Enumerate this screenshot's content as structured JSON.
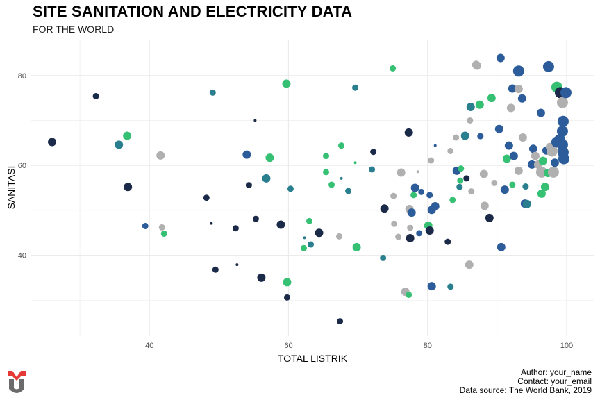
{
  "header": {
    "title": "SITE SANITATION AND ELECTRICITY DATA",
    "subtitle": "FOR THE WORLD"
  },
  "caption": {
    "author": "Author: your_name",
    "contact": "Contact: your_email",
    "source": "Data source: The World Bank, 2019"
  },
  "colors": {
    "palette": [
      "#1b2a49",
      "#2c5c9a",
      "#2a7f8f",
      "#35c073",
      "#b0b0b0"
    ],
    "grid": "#ebebeb",
    "axis_text": "#4d4d4d",
    "logo_red": "#e53935",
    "logo_gray": "#6b6b6b"
  },
  "chart_data": {
    "type": "scatter",
    "xlabel": "TOTAL LISTRIK",
    "ylabel": "SANITASI",
    "xlim": [
      23,
      104
    ],
    "ylim": [
      22,
      88
    ],
    "xticks": [
      40,
      60,
      80,
      100
    ],
    "yticks": [
      40,
      60,
      80
    ],
    "grid": true,
    "legend": "none",
    "points": [
      {
        "x": 26,
        "y": 65.2,
        "s": 3,
        "c": 0
      },
      {
        "x": 32.3,
        "y": 75.4,
        "s": 2,
        "c": 0
      },
      {
        "x": 35.6,
        "y": 64.6,
        "s": 3,
        "c": 2
      },
      {
        "x": 36.8,
        "y": 66.6,
        "s": 3,
        "c": 3
      },
      {
        "x": 36.9,
        "y": 55.2,
        "s": 3,
        "c": 0
      },
      {
        "x": 39.4,
        "y": 46.5,
        "s": 2,
        "c": 1
      },
      {
        "x": 41.6,
        "y": 62.2,
        "s": 3,
        "c": 4
      },
      {
        "x": 41.8,
        "y": 46.2,
        "s": 2,
        "c": 4
      },
      {
        "x": 42.1,
        "y": 44.8,
        "s": 2,
        "c": 3
      },
      {
        "x": 48.2,
        "y": 52.8,
        "s": 2,
        "c": 0
      },
      {
        "x": 48.9,
        "y": 47.1,
        "s": 1,
        "c": 0
      },
      {
        "x": 49.1,
        "y": 76.2,
        "s": 2,
        "c": 2
      },
      {
        "x": 49.5,
        "y": 36.8,
        "s": 2,
        "c": 0
      },
      {
        "x": 52.4,
        "y": 46,
        "s": 2,
        "c": 0
      },
      {
        "x": 52.6,
        "y": 37.9,
        "s": 1,
        "c": 0
      },
      {
        "x": 54,
        "y": 62.4,
        "s": 3,
        "c": 1
      },
      {
        "x": 54.3,
        "y": 55.6,
        "s": 2,
        "c": 0
      },
      {
        "x": 55.2,
        "y": 70,
        "s": 1,
        "c": 0
      },
      {
        "x": 55.3,
        "y": 48.1,
        "s": 2,
        "c": 0
      },
      {
        "x": 56.1,
        "y": 35,
        "s": 3,
        "c": 0
      },
      {
        "x": 56.8,
        "y": 57.1,
        "s": 3,
        "c": 2
      },
      {
        "x": 57.3,
        "y": 61.7,
        "s": 3,
        "c": 3
      },
      {
        "x": 58.9,
        "y": 46.8,
        "s": 3,
        "c": 0
      },
      {
        "x": 59.7,
        "y": 78.2,
        "s": 3,
        "c": 3
      },
      {
        "x": 59.8,
        "y": 34,
        "s": 3,
        "c": 3
      },
      {
        "x": 59.8,
        "y": 30.6,
        "s": 2,
        "c": 0
      },
      {
        "x": 60.3,
        "y": 54.8,
        "s": 2,
        "c": 2
      },
      {
        "x": 62.2,
        "y": 41.6,
        "s": 2,
        "c": 3
      },
      {
        "x": 62.3,
        "y": 43.9,
        "s": 1,
        "c": 2
      },
      {
        "x": 63,
        "y": 47.6,
        "s": 2,
        "c": 3
      },
      {
        "x": 63.2,
        "y": 42.4,
        "s": 2,
        "c": 2
      },
      {
        "x": 64.4,
        "y": 45,
        "s": 3,
        "c": 0
      },
      {
        "x": 65.4,
        "y": 62.1,
        "s": 2,
        "c": 3
      },
      {
        "x": 65.4,
        "y": 58.5,
        "s": 2,
        "c": 3
      },
      {
        "x": 66.2,
        "y": 55.7,
        "s": 2,
        "c": 3
      },
      {
        "x": 67.3,
        "y": 44.2,
        "s": 2,
        "c": 4
      },
      {
        "x": 67.4,
        "y": 25.3,
        "s": 2,
        "c": 0
      },
      {
        "x": 67.6,
        "y": 64.4,
        "s": 2,
        "c": 3
      },
      {
        "x": 67.6,
        "y": 57.1,
        "s": 1,
        "c": 2
      },
      {
        "x": 68.6,
        "y": 54.3,
        "s": 2,
        "c": 2
      },
      {
        "x": 69.6,
        "y": 77.3,
        "s": 2,
        "c": 2
      },
      {
        "x": 69.6,
        "y": 60.6,
        "s": 1,
        "c": 3
      },
      {
        "x": 69.8,
        "y": 41.8,
        "s": 3,
        "c": 3
      },
      {
        "x": 72,
        "y": 59.1,
        "s": 2,
        "c": 2
      },
      {
        "x": 72.2,
        "y": 63,
        "s": 2,
        "c": 0
      },
      {
        "x": 73.6,
        "y": 39.4,
        "s": 2,
        "c": 2
      },
      {
        "x": 73.8,
        "y": 50.4,
        "s": 3,
        "c": 0
      },
      {
        "x": 75,
        "y": 81.6,
        "s": 2,
        "c": 3
      },
      {
        "x": 75.1,
        "y": 53.2,
        "s": 2,
        "c": 4
      },
      {
        "x": 75.2,
        "y": 47,
        "s": 2,
        "c": 4
      },
      {
        "x": 75.8,
        "y": 44.1,
        "s": 2,
        "c": 4
      },
      {
        "x": 76.2,
        "y": 58.4,
        "s": 3,
        "c": 4
      },
      {
        "x": 76.8,
        "y": 31.9,
        "s": 3,
        "c": 4
      },
      {
        "x": 77.3,
        "y": 31.2,
        "s": 2,
        "c": 3
      },
      {
        "x": 77.3,
        "y": 67.3,
        "s": 3,
        "c": 0
      },
      {
        "x": 77.4,
        "y": 50.3,
        "s": 3,
        "c": 4
      },
      {
        "x": 77.5,
        "y": 46.1,
        "s": 2,
        "c": 4
      },
      {
        "x": 77.5,
        "y": 43.8,
        "s": 3,
        "c": 0
      },
      {
        "x": 77.7,
        "y": 49.5,
        "s": 3,
        "c": 1
      },
      {
        "x": 78,
        "y": 53.4,
        "s": 2,
        "c": 3
      },
      {
        "x": 78.2,
        "y": 55,
        "s": 3,
        "c": 1
      },
      {
        "x": 78.6,
        "y": 58.6,
        "s": 1,
        "c": 4
      },
      {
        "x": 78.8,
        "y": 44.9,
        "s": 2,
        "c": 1
      },
      {
        "x": 79.1,
        "y": 54.1,
        "s": 2,
        "c": 1
      },
      {
        "x": 80.1,
        "y": 46.6,
        "s": 3,
        "c": 3
      },
      {
        "x": 80.3,
        "y": 45.5,
        "s": 3,
        "c": 0
      },
      {
        "x": 80.3,
        "y": 53.4,
        "s": 2,
        "c": 1
      },
      {
        "x": 80.5,
        "y": 61.1,
        "s": 2,
        "c": 4
      },
      {
        "x": 80.6,
        "y": 50.1,
        "s": 3,
        "c": 1
      },
      {
        "x": 80.6,
        "y": 33.1,
        "s": 3,
        "c": 1
      },
      {
        "x": 81.1,
        "y": 50.9,
        "s": 3,
        "c": 1
      },
      {
        "x": 81.1,
        "y": 64.4,
        "s": 1,
        "c": 1
      },
      {
        "x": 82.9,
        "y": 43,
        "s": 2,
        "c": 0
      },
      {
        "x": 83.3,
        "y": 63.2,
        "s": 2,
        "c": 4
      },
      {
        "x": 83.3,
        "y": 33,
        "s": 2,
        "c": 2
      },
      {
        "x": 83.6,
        "y": 52.3,
        "s": 2,
        "c": 3
      },
      {
        "x": 84.1,
        "y": 66.2,
        "s": 2,
        "c": 4
      },
      {
        "x": 84.2,
        "y": 58.8,
        "s": 3,
        "c": 1
      },
      {
        "x": 84.6,
        "y": 55.2,
        "s": 2,
        "c": 2
      },
      {
        "x": 84.7,
        "y": 56.6,
        "s": 2,
        "c": 3
      },
      {
        "x": 84.8,
        "y": 59.3,
        "s": 2,
        "c": 3
      },
      {
        "x": 85.4,
        "y": 66.6,
        "s": 3,
        "c": 2
      },
      {
        "x": 85.6,
        "y": 57.1,
        "s": 2,
        "c": 0
      },
      {
        "x": 86,
        "y": 37.9,
        "s": 3,
        "c": 4
      },
      {
        "x": 86.1,
        "y": 70,
        "s": 2,
        "c": 4
      },
      {
        "x": 86.2,
        "y": 73,
        "s": 3,
        "c": 2
      },
      {
        "x": 86.3,
        "y": 54.2,
        "s": 2,
        "c": 4
      },
      {
        "x": 87,
        "y": 82.4,
        "s": 3,
        "c": 4
      },
      {
        "x": 87.1,
        "y": 82.2,
        "s": 3,
        "c": 4
      },
      {
        "x": 87.5,
        "y": 73.5,
        "s": 3,
        "c": 3
      },
      {
        "x": 87.6,
        "y": 66.5,
        "s": 2,
        "c": 1
      },
      {
        "x": 88.1,
        "y": 58.1,
        "s": 3,
        "c": 4
      },
      {
        "x": 88.2,
        "y": 51,
        "s": 3,
        "c": 4
      },
      {
        "x": 88.9,
        "y": 48.3,
        "s": 3,
        "c": 0
      },
      {
        "x": 89.2,
        "y": 75,
        "s": 3,
        "c": 3
      },
      {
        "x": 89.6,
        "y": 56.1,
        "s": 2,
        "c": 4
      },
      {
        "x": 90.3,
        "y": 68.1,
        "s": 3,
        "c": 1
      },
      {
        "x": 90.5,
        "y": 83.9,
        "s": 3,
        "c": 1
      },
      {
        "x": 90.6,
        "y": 41.8,
        "s": 3,
        "c": 1
      },
      {
        "x": 91.1,
        "y": 54.6,
        "s": 3,
        "c": 1
      },
      {
        "x": 91.4,
        "y": 61.5,
        "s": 3,
        "c": 3
      },
      {
        "x": 91.7,
        "y": 64.4,
        "s": 3,
        "c": 1
      },
      {
        "x": 92,
        "y": 72.8,
        "s": 3,
        "c": 4
      },
      {
        "x": 92.2,
        "y": 77.1,
        "s": 3,
        "c": 1
      },
      {
        "x": 92.2,
        "y": 55.7,
        "s": 2,
        "c": 3
      },
      {
        "x": 92.4,
        "y": 62.1,
        "s": 3,
        "c": 1
      },
      {
        "x": 93.1,
        "y": 81,
        "s": 4,
        "c": 1
      },
      {
        "x": 93.1,
        "y": 77,
        "s": 3,
        "c": 4
      },
      {
        "x": 93.1,
        "y": 58.8,
        "s": 3,
        "c": 4
      },
      {
        "x": 93.6,
        "y": 74.9,
        "s": 3,
        "c": 1
      },
      {
        "x": 93.7,
        "y": 66.2,
        "s": 3,
        "c": 4
      },
      {
        "x": 94,
        "y": 51.5,
        "s": 3,
        "c": 1
      },
      {
        "x": 94.1,
        "y": 55.3,
        "s": 2,
        "c": 2
      },
      {
        "x": 94.3,
        "y": 51.4,
        "s": 3,
        "c": 2
      },
      {
        "x": 95,
        "y": 60.2,
        "s": 3,
        "c": 1
      },
      {
        "x": 95.2,
        "y": 63.7,
        "s": 3,
        "c": 1
      },
      {
        "x": 95.5,
        "y": 62.1,
        "s": 3,
        "c": 4
      },
      {
        "x": 95.9,
        "y": 60.2,
        "s": 3,
        "c": 4
      },
      {
        "x": 96.3,
        "y": 71.7,
        "s": 3,
        "c": 1
      },
      {
        "x": 96.4,
        "y": 53.7,
        "s": 3,
        "c": 3
      },
      {
        "x": 96.4,
        "y": 58.5,
        "s": 4,
        "c": 4
      },
      {
        "x": 96.6,
        "y": 61,
        "s": 3,
        "c": 3
      },
      {
        "x": 96.9,
        "y": 55.2,
        "s": 3,
        "c": 3
      },
      {
        "x": 97.1,
        "y": 63.3,
        "s": 3,
        "c": 1
      },
      {
        "x": 97.3,
        "y": 58.3,
        "s": 3,
        "c": 3
      },
      {
        "x": 97.4,
        "y": 82,
        "s": 4,
        "c": 1
      },
      {
        "x": 97.6,
        "y": 64.1,
        "s": 3,
        "c": 4
      },
      {
        "x": 97.9,
        "y": 63.2,
        "s": 4,
        "c": 4
      },
      {
        "x": 98.1,
        "y": 58.5,
        "s": 4,
        "c": 4
      },
      {
        "x": 98.3,
        "y": 60.6,
        "s": 3,
        "c": 1
      },
      {
        "x": 98.6,
        "y": 77.4,
        "s": 4,
        "c": 3
      },
      {
        "x": 98.6,
        "y": 65.2,
        "s": 4,
        "c": 1
      },
      {
        "x": 99,
        "y": 65.7,
        "s": 4,
        "c": 1
      },
      {
        "x": 99.1,
        "y": 76.2,
        "s": 4,
        "c": 0
      },
      {
        "x": 99.4,
        "y": 74,
        "s": 4,
        "c": 4
      },
      {
        "x": 99.4,
        "y": 67.6,
        "s": 4,
        "c": 1
      },
      {
        "x": 99.4,
        "y": 64.6,
        "s": 4,
        "c": 1
      },
      {
        "x": 99.5,
        "y": 69.8,
        "s": 4,
        "c": 1
      },
      {
        "x": 99.5,
        "y": 62.9,
        "s": 4,
        "c": 1
      },
      {
        "x": 99.6,
        "y": 61.5,
        "s": 4,
        "c": 1
      },
      {
        "x": 99.9,
        "y": 76.2,
        "s": 4,
        "c": 1
      }
    ]
  }
}
